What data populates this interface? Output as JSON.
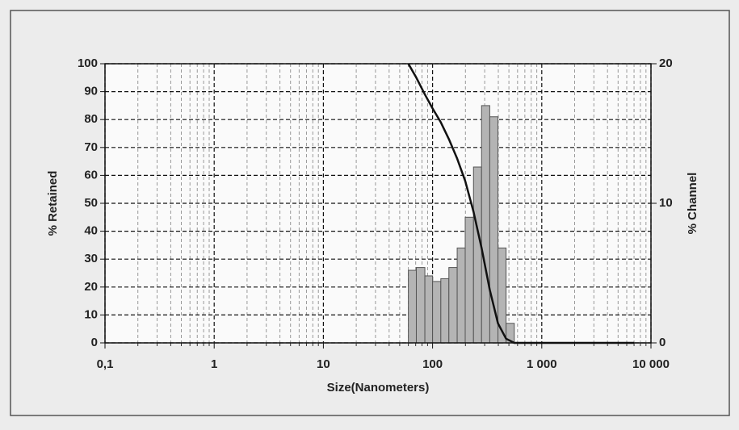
{
  "chart_data": {
    "type": "combo",
    "xlabel": "Size(Nanometers)",
    "ylabel": "% Retained",
    "y2label": "% Channel",
    "xscale": "log",
    "xlim": [
      0.1,
      10000
    ],
    "xticks": [
      {
        "value": 0.1,
        "label": "0,1"
      },
      1,
      10,
      100,
      {
        "value": 1000,
        "label": "1 000"
      },
      {
        "value": 10000,
        "label": "10 000"
      }
    ],
    "ylim": [
      0,
      100
    ],
    "yticks": [
      0,
      10,
      20,
      30,
      40,
      50,
      60,
      70,
      80,
      90,
      100
    ],
    "y2lim": [
      0,
      20
    ],
    "y2ticks": [
      0,
      10,
      20
    ],
    "grid": true,
    "series": [
      {
        "type": "histogram",
        "axis": "y2",
        "color": "#b4b4b4",
        "bins": [
          60,
          71,
          85,
          100,
          119,
          141,
          168,
          199,
          237,
          281,
          334,
          397,
          471,
          560
        ],
        "values": [
          5.2,
          5.4,
          4.8,
          4.4,
          4.6,
          5.4,
          6.8,
          9.0,
          12.6,
          17.0,
          16.2,
          6.8,
          1.4
        ]
      },
      {
        "type": "line",
        "color": "#111111",
        "x": [
          60,
          71,
          85,
          100,
          119,
          141,
          168,
          199,
          237,
          281,
          334,
          397,
          471,
          560,
          7000
        ],
        "values": [
          100,
          95,
          89,
          84,
          79,
          73,
          66,
          58,
          47,
          34,
          19,
          7,
          1.5,
          0,
          0
        ]
      }
    ]
  }
}
